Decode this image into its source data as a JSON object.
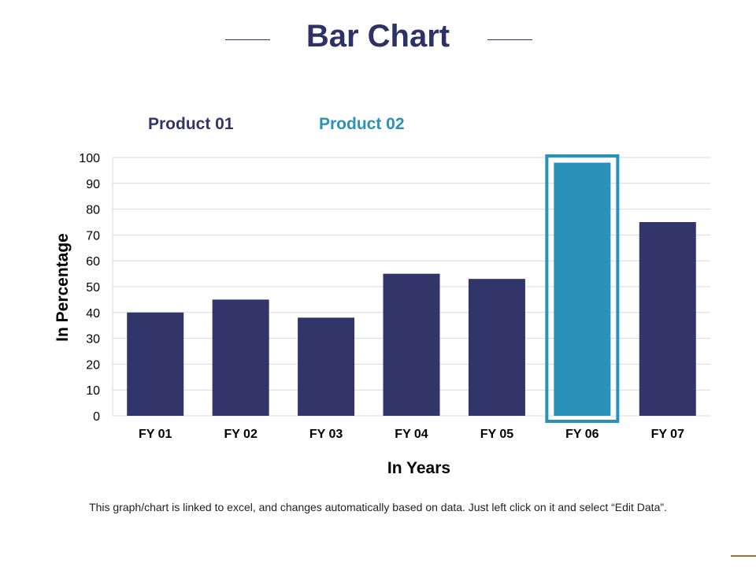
{
  "page": {
    "title": "Bar Chart",
    "footnote": "This graph/chart is linked to excel, and changes automatically  based on data. Just left click on it and select “Edit Data”."
  },
  "colors": {
    "title": "#2d3266",
    "product_01": "#31356a",
    "product_02": "#2a92b9",
    "accent_line": "#b36a2e"
  },
  "chart_data": {
    "type": "bar",
    "xlabel": "In Years",
    "ylabel": "In Percentage",
    "ylim": [
      0,
      100
    ],
    "yticks": [
      0,
      10,
      20,
      30,
      40,
      50,
      60,
      70,
      80,
      90,
      100
    ],
    "grid": true,
    "legend": [
      "Product 01",
      "Product 02"
    ],
    "highlighted_category": "FY 06",
    "categories": [
      "FY 01",
      "FY 02",
      "FY 03",
      "FY 04",
      "FY 05",
      "FY 06",
      "FY 07"
    ],
    "values": [
      40,
      45,
      38,
      55,
      53,
      98,
      75
    ]
  }
}
